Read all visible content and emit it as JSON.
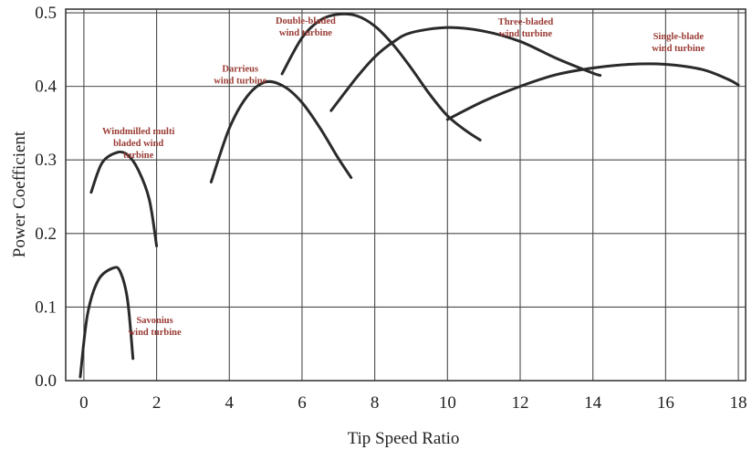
{
  "chart_data": {
    "type": "line",
    "title": "",
    "xlabel": "Tip Speed Ratio",
    "ylabel": "Power Coefficient",
    "xlim": [
      -0.5,
      18.2
    ],
    "ylim": [
      0,
      0.505
    ],
    "x_ticks": [
      "0",
      "2",
      "4",
      "6",
      "8",
      "10",
      "12",
      "14",
      "16",
      "18"
    ],
    "y_ticks": [
      "0.0",
      "0.1",
      "0.2",
      "0.3",
      "0.4",
      "0.5"
    ],
    "grid": true,
    "series": [
      {
        "name": "Savonius wind turbine",
        "label_lines": [
          "Savonius",
          "wind turbine"
        ],
        "label_at": [
          1.95,
          0.078
        ],
        "points": [
          [
            -0.1,
            0.005
          ],
          [
            0.1,
            0.09
          ],
          [
            0.4,
            0.137
          ],
          [
            0.8,
            0.153
          ],
          [
            1.0,
            0.148
          ],
          [
            1.2,
            0.11
          ],
          [
            1.35,
            0.03
          ]
        ]
      },
      {
        "name": "Windmilled multi bladed wind turbine",
        "label_lines": [
          "Windmilled multi",
          "bladed wind",
          "turbine"
        ],
        "label_at": [
          1.5,
          0.335
        ],
        "points": [
          [
            0.2,
            0.256
          ],
          [
            0.5,
            0.296
          ],
          [
            0.9,
            0.31
          ],
          [
            1.2,
            0.307
          ],
          [
            1.5,
            0.286
          ],
          [
            1.8,
            0.246
          ],
          [
            2.0,
            0.183
          ]
        ]
      },
      {
        "name": "Darrieus wind turbine",
        "label_lines": [
          "Darrieus",
          "wind turbine"
        ],
        "label_at": [
          4.3,
          0.42
        ],
        "points": [
          [
            3.5,
            0.27
          ],
          [
            4.0,
            0.343
          ],
          [
            4.5,
            0.387
          ],
          [
            5.0,
            0.406
          ],
          [
            5.5,
            0.4
          ],
          [
            6.0,
            0.378
          ],
          [
            6.5,
            0.343
          ],
          [
            7.0,
            0.302
          ],
          [
            7.35,
            0.276
          ]
        ]
      },
      {
        "name": "Double-bladed wind turbine",
        "label_lines": [
          "Double-bladed",
          "wind turbine"
        ],
        "label_at": [
          6.1,
          0.485
        ],
        "points": [
          [
            5.45,
            0.417
          ],
          [
            6.0,
            0.466
          ],
          [
            6.5,
            0.49
          ],
          [
            7.0,
            0.498
          ],
          [
            7.5,
            0.496
          ],
          [
            8.0,
            0.482
          ],
          [
            8.5,
            0.457
          ],
          [
            9.0,
            0.425
          ],
          [
            9.5,
            0.39
          ],
          [
            10.0,
            0.36
          ],
          [
            10.5,
            0.34
          ],
          [
            10.9,
            0.327
          ]
        ]
      },
      {
        "name": "Three-bladed wind turbine",
        "label_lines": [
          "Three-bladed",
          "wind turbine"
        ],
        "label_at": [
          12.15,
          0.484
        ],
        "points": [
          [
            6.8,
            0.367
          ],
          [
            7.5,
            0.412
          ],
          [
            8.0,
            0.44
          ],
          [
            8.5,
            0.46
          ],
          [
            9.0,
            0.473
          ],
          [
            10.0,
            0.48
          ],
          [
            11.0,
            0.475
          ],
          [
            12.0,
            0.461
          ],
          [
            13.0,
            0.438
          ],
          [
            14.0,
            0.418
          ],
          [
            14.2,
            0.415
          ]
        ]
      },
      {
        "name": "Single-blade wind turbine",
        "label_lines": [
          "Single-blade",
          "wind turbine"
        ],
        "label_at": [
          16.35,
          0.464
        ],
        "points": [
          [
            10.0,
            0.355
          ],
          [
            11.0,
            0.38
          ],
          [
            12.0,
            0.4
          ],
          [
            13.0,
            0.416
          ],
          [
            14.0,
            0.425
          ],
          [
            15.0,
            0.43
          ],
          [
            16.0,
            0.43
          ],
          [
            17.0,
            0.423
          ],
          [
            17.7,
            0.41
          ],
          [
            18.0,
            0.402
          ]
        ]
      }
    ]
  }
}
